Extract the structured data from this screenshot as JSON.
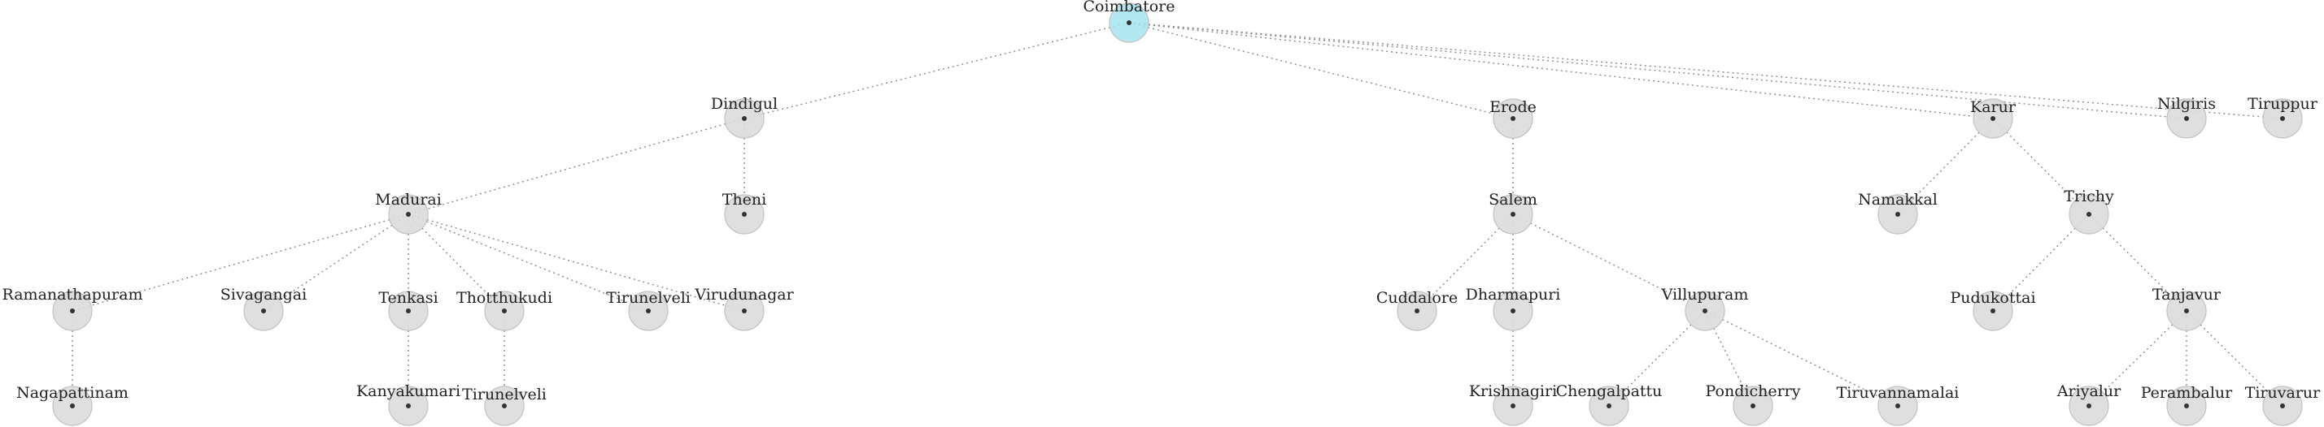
{
  "diagram": {
    "root_color": "#a7e4ee",
    "node_color": "#dcdcdc",
    "nodes": [
      {
        "id": "coimbatore",
        "label": "Coimbatore",
        "root": true
      },
      {
        "id": "dindigul",
        "label": "Dindigul"
      },
      {
        "id": "erode",
        "label": "Erode"
      },
      {
        "id": "karur",
        "label": "Karur"
      },
      {
        "id": "nilgiris",
        "label": "Nilgiris"
      },
      {
        "id": "tiruppur",
        "label": "Tiruppur"
      },
      {
        "id": "madurai",
        "label": "Madurai"
      },
      {
        "id": "theni",
        "label": "Theni"
      },
      {
        "id": "salem",
        "label": "Salem"
      },
      {
        "id": "namakkal",
        "label": "Namakkal"
      },
      {
        "id": "trichy",
        "label": "Trichy"
      },
      {
        "id": "ramanathapuram",
        "label": "Ramanathapuram"
      },
      {
        "id": "sivagangai",
        "label": "Sivagangai"
      },
      {
        "id": "tenkasi",
        "label": "Tenkasi"
      },
      {
        "id": "thotthukudi",
        "label": "Thotthukudi"
      },
      {
        "id": "tirunelveli",
        "label": "Tirunelveli"
      },
      {
        "id": "virudunagar",
        "label": "Virudunagar"
      },
      {
        "id": "cuddalore",
        "label": "Cuddalore"
      },
      {
        "id": "dharmapuri",
        "label": "Dharmapuri"
      },
      {
        "id": "villupuram",
        "label": "Villupuram"
      },
      {
        "id": "pudukottai",
        "label": "Pudukottai"
      },
      {
        "id": "tanjavur",
        "label": "Tanjavur"
      },
      {
        "id": "nagapattinam",
        "label": "Nagapattinam"
      },
      {
        "id": "kanyakumari",
        "label": "Kanyakumari"
      },
      {
        "id": "tirunelveli2",
        "label": "Tirunelveli"
      },
      {
        "id": "krishnagiri",
        "label": "Krishnagiri"
      },
      {
        "id": "chengalpattu",
        "label": "Chengalpattu"
      },
      {
        "id": "pondicherry",
        "label": "Pondicherry"
      },
      {
        "id": "tiruvannamalai",
        "label": "Tiruvannamalai"
      },
      {
        "id": "ariyalur",
        "label": "Ariyalur"
      },
      {
        "id": "perambalur",
        "label": "Perambalur"
      },
      {
        "id": "tiruvarur",
        "label": "Tiruvarur"
      }
    ],
    "edges": [
      [
        "coimbatore",
        "dindigul"
      ],
      [
        "coimbatore",
        "erode"
      ],
      [
        "coimbatore",
        "karur"
      ],
      [
        "coimbatore",
        "nilgiris"
      ],
      [
        "coimbatore",
        "tiruppur"
      ],
      [
        "dindigul",
        "madurai"
      ],
      [
        "dindigul",
        "theni"
      ],
      [
        "erode",
        "salem"
      ],
      [
        "karur",
        "namakkal"
      ],
      [
        "karur",
        "trichy"
      ],
      [
        "madurai",
        "ramanathapuram"
      ],
      [
        "madurai",
        "sivagangai"
      ],
      [
        "madurai",
        "tenkasi"
      ],
      [
        "madurai",
        "thotthukudi"
      ],
      [
        "madurai",
        "tirunelveli"
      ],
      [
        "madurai",
        "virudunagar"
      ],
      [
        "salem",
        "cuddalore"
      ],
      [
        "salem",
        "dharmapuri"
      ],
      [
        "salem",
        "villupuram"
      ],
      [
        "trichy",
        "pudukottai"
      ],
      [
        "trichy",
        "tanjavur"
      ],
      [
        "ramanathapuram",
        "nagapattinam"
      ],
      [
        "tenkasi",
        "kanyakumari"
      ],
      [
        "thotthukudi",
        "tirunelveli2"
      ],
      [
        "dharmapuri",
        "krishnagiri"
      ],
      [
        "villupuram",
        "chengalpattu"
      ],
      [
        "villupuram",
        "pondicherry"
      ],
      [
        "villupuram",
        "tiruvannamalai"
      ],
      [
        "tanjavur",
        "ariyalur"
      ],
      [
        "tanjavur",
        "perambalur"
      ],
      [
        "tanjavur",
        "tiruvarur"
      ]
    ]
  }
}
